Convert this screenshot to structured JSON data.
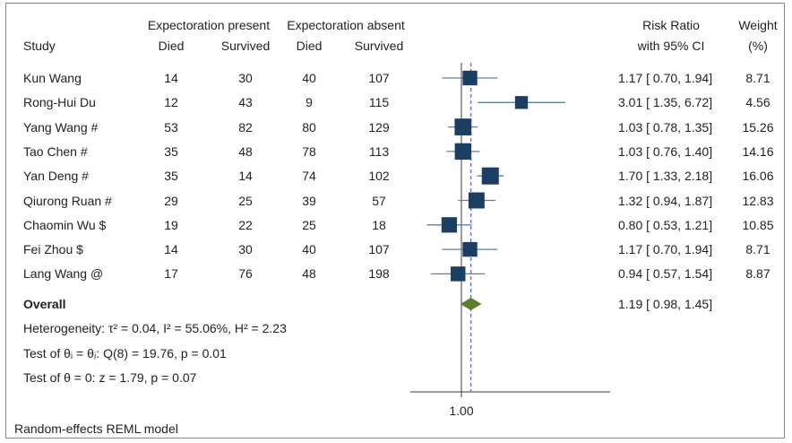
{
  "chart_data": {
    "type": "forest",
    "header": {
      "group1": "Expectoration present",
      "group2": "Expectoration absent",
      "study": "Study",
      "died": "Died",
      "survived": "Survived",
      "rr_line1": "Risk Ratio",
      "rr_line2": "with 95% CI",
      "weight_line1": "Weight",
      "weight_line2": "(%)"
    },
    "studies": [
      {
        "name": "Kun Wang",
        "died1": "14",
        "surv1": "30",
        "died2": "40",
        "surv2": "107",
        "rr": 1.17,
        "lo": 0.7,
        "hi": 1.94,
        "ci_text": "1.17 [ 0.70,  1.94]",
        "weight": "8.71"
      },
      {
        "name": "Rong-Hui Du",
        "died1": "12",
        "surv1": "43",
        "died2": "9",
        "surv2": "115",
        "rr": 3.01,
        "lo": 1.35,
        "hi": 6.72,
        "ci_text": "3.01 [ 1.35,  6.72]",
        "weight": "4.56"
      },
      {
        "name": "Yang Wang #",
        "died1": "53",
        "surv1": "82",
        "died2": "80",
        "surv2": "129",
        "rr": 1.03,
        "lo": 0.78,
        "hi": 1.35,
        "ci_text": "1.03 [ 0.78,  1.35]",
        "weight": "15.26"
      },
      {
        "name": "Tao Chen #",
        "died1": "35",
        "surv1": "48",
        "died2": "78",
        "surv2": "113",
        "rr": 1.03,
        "lo": 0.76,
        "hi": 1.4,
        "ci_text": "1.03 [ 0.76,  1.40]",
        "weight": "14.16"
      },
      {
        "name": "Yan Deng #",
        "died1": "35",
        "surv1": "14",
        "died2": "74",
        "surv2": "102",
        "rr": 1.7,
        "lo": 1.33,
        "hi": 2.18,
        "ci_text": "1.70 [ 1.33,  2.18]",
        "weight": "16.06"
      },
      {
        "name": "Qiurong Ruan #",
        "died1": "29",
        "surv1": "25",
        "died2": "39",
        "surv2": "57",
        "rr": 1.32,
        "lo": 0.94,
        "hi": 1.87,
        "ci_text": "1.32 [ 0.94,  1.87]",
        "weight": "12.83"
      },
      {
        "name": "Chaomin Wu $",
        "died1": "19",
        "surv1": "22",
        "died2": "25",
        "surv2": "18",
        "rr": 0.8,
        "lo": 0.53,
        "hi": 1.21,
        "ci_text": "0.80 [ 0.53,  1.21]",
        "weight": "10.85"
      },
      {
        "name": "Fei Zhou $",
        "died1": "14",
        "surv1": "30",
        "died2": "40",
        "surv2": "107",
        "rr": 1.17,
        "lo": 0.7,
        "hi": 1.94,
        "ci_text": "1.17 [ 0.70,  1.94]",
        "weight": "8.71"
      },
      {
        "name": "Lang Wang @",
        "died1": "17",
        "surv1": "76",
        "died2": "48",
        "surv2": "198",
        "rr": 0.94,
        "lo": 0.57,
        "hi": 1.54,
        "ci_text": "0.94 [ 0.57,  1.54]",
        "weight": "8.87"
      }
    ],
    "overall": {
      "label": "Overall",
      "rr": 1.19,
      "lo": 0.98,
      "hi": 1.45,
      "ci_text": "1.19 [ 0.98,  1.45]"
    },
    "stats": {
      "heterogeneity": "Heterogeneity: τ² = 0.04, I² = 55.06%, H² = 2.23",
      "test_equal": "Test of θᵢ = θⱼ: Q(8) = 19.76, p = 0.01",
      "test_zero": "Test of θ = 0: z = 1.79, p = 0.07"
    },
    "x_scale": "log",
    "x_tick": "1.00",
    "null_value": 1.0,
    "footer": "Random-effects REML model",
    "colors": {
      "marker": "#1a3f63",
      "ci_line": "#5c80a8",
      "diamond": "#5b7f2e",
      "overall_line": "#7070e0",
      "axis": "#3a3a3a"
    }
  }
}
